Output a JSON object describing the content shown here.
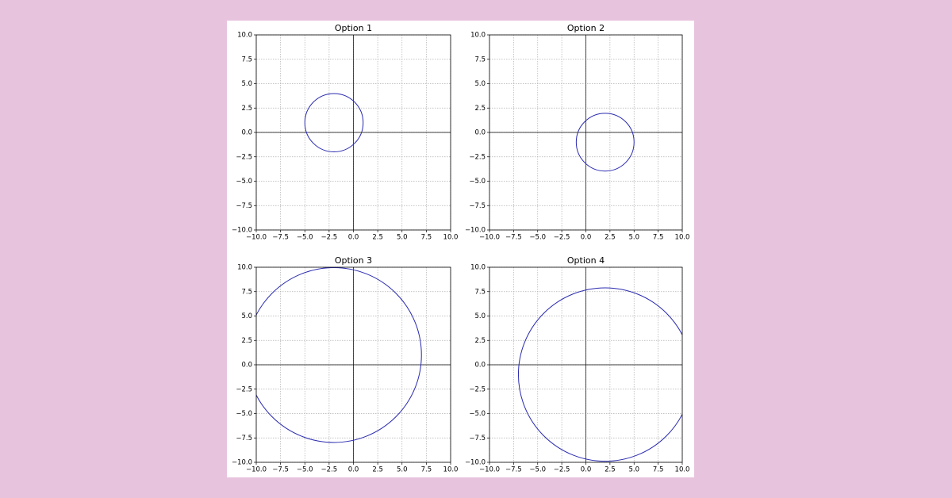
{
  "chart_data": [
    {
      "type": "circle",
      "title": "Option 1",
      "center": [
        -2,
        1
      ],
      "radius": 3,
      "color": "#2a2ab0",
      "grid": true,
      "xlim": [
        -10,
        10
      ],
      "ylim": [
        -10,
        10
      ],
      "xticks": [
        {
          "value": -10,
          "label": "−10.0"
        },
        {
          "value": -7.5,
          "label": "−7.5"
        },
        {
          "value": -5,
          "label": "−5.0"
        },
        {
          "value": -2.5,
          "label": "−2.5"
        },
        {
          "value": 0,
          "label": "0.0"
        },
        {
          "value": 2.5,
          "label": "2.5"
        },
        {
          "value": 5,
          "label": "5.0"
        },
        {
          "value": 7.5,
          "label": "7.5"
        },
        {
          "value": 10,
          "label": "10.0"
        }
      ],
      "yticks": [
        {
          "value": -10,
          "label": "−10.0"
        },
        {
          "value": -7.5,
          "label": "−7.5"
        },
        {
          "value": -5,
          "label": "−5.0"
        },
        {
          "value": -2.5,
          "label": "−2.5"
        },
        {
          "value": 0,
          "label": "0.0"
        },
        {
          "value": 2.5,
          "label": "2.5"
        },
        {
          "value": 5,
          "label": "5.0"
        },
        {
          "value": 7.5,
          "label": "7.5"
        },
        {
          "value": 10,
          "label": "10.0"
        }
      ]
    },
    {
      "type": "circle",
      "title": "Option 2",
      "center": [
        2,
        -1
      ],
      "radius": 3,
      "color": "#2a2ab0",
      "grid": true,
      "xlim": [
        -10,
        10
      ],
      "ylim": [
        -10,
        10
      ],
      "xticks": [
        {
          "value": -10,
          "label": "−10.0"
        },
        {
          "value": -7.5,
          "label": "−7.5"
        },
        {
          "value": -5,
          "label": "−5.0"
        },
        {
          "value": -2.5,
          "label": "−2.5"
        },
        {
          "value": 0,
          "label": "0.0"
        },
        {
          "value": 2.5,
          "label": "2.5"
        },
        {
          "value": 5,
          "label": "5.0"
        },
        {
          "value": 7.5,
          "label": "7.5"
        },
        {
          "value": 10,
          "label": "10.0"
        }
      ],
      "yticks": [
        {
          "value": -10,
          "label": "−10.0"
        },
        {
          "value": -7.5,
          "label": "−7.5"
        },
        {
          "value": -5,
          "label": "−5.0"
        },
        {
          "value": -2.5,
          "label": "−2.5"
        },
        {
          "value": 0,
          "label": "0.0"
        },
        {
          "value": 2.5,
          "label": "2.5"
        },
        {
          "value": 5,
          "label": "5.0"
        },
        {
          "value": 7.5,
          "label": "7.5"
        },
        {
          "value": 10,
          "label": "10.0"
        }
      ]
    },
    {
      "type": "circle",
      "title": "Option 3",
      "center": [
        -2,
        1
      ],
      "radius": 9,
      "color": "#2a2ab0",
      "grid": true,
      "xlim": [
        -10,
        10
      ],
      "ylim": [
        -10,
        10
      ],
      "xticks": [
        {
          "value": -10,
          "label": "−10.0"
        },
        {
          "value": -7.5,
          "label": "−7.5"
        },
        {
          "value": -5,
          "label": "−5.0"
        },
        {
          "value": -2.5,
          "label": "−2.5"
        },
        {
          "value": 0,
          "label": "0.0"
        },
        {
          "value": 2.5,
          "label": "2.5"
        },
        {
          "value": 5,
          "label": "5.0"
        },
        {
          "value": 7.5,
          "label": "7.5"
        },
        {
          "value": 10,
          "label": "10.0"
        }
      ],
      "yticks": [
        {
          "value": -10,
          "label": "−10.0"
        },
        {
          "value": -7.5,
          "label": "−7.5"
        },
        {
          "value": -5,
          "label": "−5.0"
        },
        {
          "value": -2.5,
          "label": "−2.5"
        },
        {
          "value": 0,
          "label": "0.0"
        },
        {
          "value": 2.5,
          "label": "2.5"
        },
        {
          "value": 5,
          "label": "5.0"
        },
        {
          "value": 7.5,
          "label": "7.5"
        },
        {
          "value": 10,
          "label": "10.0"
        }
      ]
    },
    {
      "type": "circle",
      "title": "Option 4",
      "center": [
        2,
        -1
      ],
      "radius": 9,
      "color": "#2a2ab0",
      "grid": true,
      "xlim": [
        -10,
        10
      ],
      "ylim": [
        -10,
        10
      ],
      "xticks": [
        {
          "value": -10,
          "label": "−10.0"
        },
        {
          "value": -7.5,
          "label": "−7.5"
        },
        {
          "value": -5,
          "label": "−5.0"
        },
        {
          "value": -2.5,
          "label": "−2.5"
        },
        {
          "value": 0,
          "label": "0.0"
        },
        {
          "value": 2.5,
          "label": "2.5"
        },
        {
          "value": 5,
          "label": "5.0"
        },
        {
          "value": 7.5,
          "label": "7.5"
        },
        {
          "value": 10,
          "label": "10.0"
        }
      ],
      "yticks": [
        {
          "value": -10,
          "label": "−10.0"
        },
        {
          "value": -7.5,
          "label": "−7.5"
        },
        {
          "value": -5,
          "label": "−5.0"
        },
        {
          "value": -2.5,
          "label": "−2.5"
        },
        {
          "value": 0,
          "label": "0.0"
        },
        {
          "value": 2.5,
          "label": "2.5"
        },
        {
          "value": 5,
          "label": "5.0"
        },
        {
          "value": 7.5,
          "label": "7.5"
        },
        {
          "value": 10,
          "label": "10.0"
        }
      ]
    }
  ]
}
